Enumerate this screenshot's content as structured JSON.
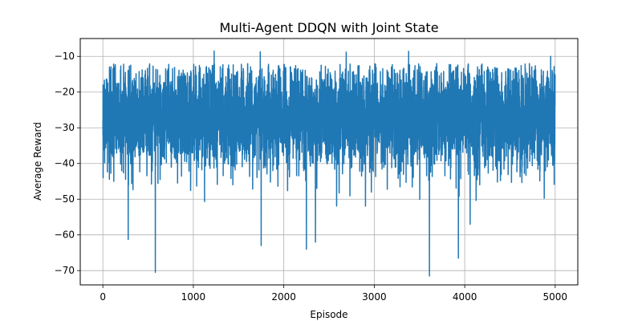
{
  "chart_data": {
    "type": "line",
    "title": "Multi-Agent DDQN with Joint State",
    "xlabel": "Episode",
    "ylabel": "Average Reward",
    "xlim": [
      -250,
      5250
    ],
    "ylim": [
      -74,
      -5
    ],
    "xticks": [
      0,
      1000,
      2000,
      3000,
      4000,
      5000
    ],
    "yticks": [
      -70,
      -60,
      -50,
      -40,
      -30,
      -20,
      -10
    ],
    "grid": true,
    "series_color": "#1f77b4",
    "series": [
      {
        "name": "",
        "summary": {
          "episodes": 5000,
          "typical_range": [
            -40,
            -15
          ],
          "mean_approx": -27
        },
        "notable_points": [
          {
            "x": 580,
            "y": -70.5
          },
          {
            "x": 3610,
            "y": -71.5
          },
          {
            "x": 280,
            "y": -61.3
          },
          {
            "x": 2250,
            "y": -64.0
          },
          {
            "x": 2350,
            "y": -62.0
          },
          {
            "x": 1750,
            "y": -63.0
          },
          {
            "x": 3930,
            "y": -66.5
          },
          {
            "x": 4060,
            "y": -57.0
          },
          {
            "x": 1230,
            "y": -8.5
          },
          {
            "x": 1740,
            "y": -8.7
          },
          {
            "x": 2690,
            "y": -8.8
          },
          {
            "x": 3380,
            "y": -8.6
          },
          {
            "x": 4950,
            "y": -10.0
          },
          {
            "x": 5000,
            "y": -15.0
          }
        ]
      }
    ]
  }
}
